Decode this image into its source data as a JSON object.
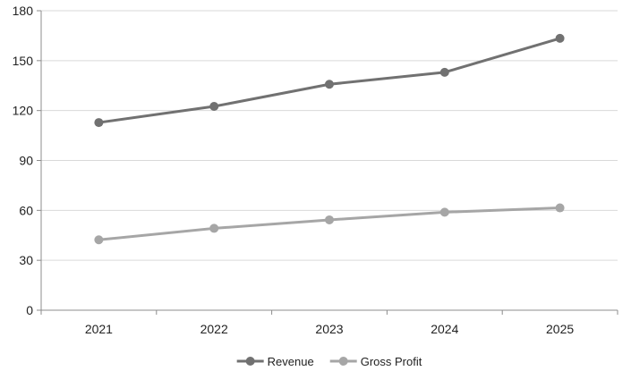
{
  "chart_data": {
    "type": "line",
    "categories": [
      "2021",
      "2022",
      "2023",
      "2024",
      "2025"
    ],
    "series": [
      {
        "name": "Revenue",
        "values": [
          112.8,
          122.5,
          135.8,
          143.0,
          163.4
        ],
        "color": "#717171"
      },
      {
        "name": "Gross Profit",
        "values": [
          42.3,
          49.2,
          54.3,
          58.9,
          61.5
        ],
        "color": "#a6a6a6"
      }
    ],
    "ylim": [
      0,
      180
    ],
    "yticks": [
      "0",
      "30",
      "60",
      "90",
      "120",
      "150",
      "180"
    ],
    "grid": true,
    "legend": "bottom-center"
  }
}
